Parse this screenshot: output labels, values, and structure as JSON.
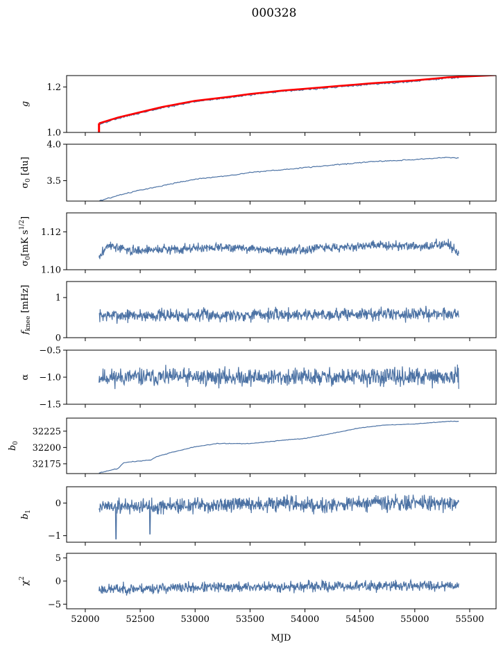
{
  "title": "000328",
  "xlabel": "MJD",
  "x_ticks": [
    52000,
    52500,
    53000,
    53500,
    54000,
    54500,
    55000,
    55500
  ],
  "colors": {
    "series": "#4c72a4",
    "model": "#ff0000"
  },
  "chart_data": {
    "type": "line",
    "shared_x": {
      "label": "MJD",
      "xlim": [
        51830,
        55740
      ],
      "data_range": [
        52125,
        55400
      ]
    },
    "panels": [
      {
        "id": "g",
        "ylabel_parts": [
          "g",
          "",
          ""
        ],
        "ylim": [
          1.0,
          1.25
        ],
        "yticks": [
          1.0,
          1.2
        ],
        "ytick_labels": [
          "1.0",
          "1.2"
        ],
        "series": [
          {
            "kind": "trend",
            "points": [
              [
                52125,
                1.035
              ],
              [
                52300,
                1.062
              ],
              [
                52500,
                1.085
              ],
              [
                52700,
                1.108
              ],
              [
                53000,
                1.135
              ],
              [
                53300,
                1.152
              ],
              [
                53500,
                1.165
              ],
              [
                53800,
                1.18
              ],
              [
                54000,
                1.188
              ],
              [
                54300,
                1.2
              ],
              [
                54600,
                1.212
              ],
              [
                55000,
                1.225
              ],
              [
                55300,
                1.238
              ],
              [
                55400,
                1.242
              ]
            ],
            "noise": 0.002
          },
          {
            "kind": "model",
            "points": [
              [
                52125,
                1.04
              ],
              [
                52300,
                1.066
              ],
              [
                52500,
                1.089
              ],
              [
                52700,
                1.112
              ],
              [
                53000,
                1.139
              ],
              [
                53300,
                1.156
              ],
              [
                53500,
                1.169
              ],
              [
                53800,
                1.184
              ],
              [
                54000,
                1.192
              ],
              [
                54300,
                1.204
              ],
              [
                54600,
                1.216
              ],
              [
                55000,
                1.229
              ],
              [
                55300,
                1.242
              ],
              [
                55740,
                1.252
              ]
            ],
            "drop_to": 1.0
          }
        ]
      },
      {
        "id": "sigma0_du",
        "ylabel_parts": [
          "σ",
          "0",
          " [du]"
        ],
        "ylim": [
          3.22,
          4.0
        ],
        "yticks": [
          3.5,
          4.0
        ],
        "ytick_labels": [
          "3.5",
          "4.0"
        ],
        "series": [
          {
            "kind": "trend",
            "points": [
              [
                52125,
                3.22
              ],
              [
                52300,
                3.3
              ],
              [
                52500,
                3.37
              ],
              [
                52700,
                3.43
              ],
              [
                53000,
                3.52
              ],
              [
                53300,
                3.57
              ],
              [
                53500,
                3.61
              ],
              [
                53800,
                3.65
              ],
              [
                54000,
                3.68
              ],
              [
                54300,
                3.72
              ],
              [
                54600,
                3.76
              ],
              [
                55000,
                3.79
              ],
              [
                55300,
                3.82
              ],
              [
                55400,
                3.81
              ]
            ],
            "noise": 0.004
          }
        ]
      },
      {
        "id": "sigma0_mK",
        "ylabel_parts": [
          "σ",
          "0",
          "[mK s^1/2]"
        ],
        "ylim": [
          1.1,
          1.13
        ],
        "yticks": [
          1.1,
          1.12
        ],
        "ytick_labels": [
          "1.10",
          "1.12"
        ],
        "series": [
          {
            "kind": "noise",
            "points": [
              [
                52125,
                1.106
              ],
              [
                52200,
                1.113
              ],
              [
                52400,
                1.11
              ],
              [
                52800,
                1.111
              ],
              [
                53300,
                1.112
              ],
              [
                53800,
                1.11
              ],
              [
                54300,
                1.112
              ],
              [
                54800,
                1.113
              ],
              [
                55100,
                1.112
              ],
              [
                55300,
                1.114
              ],
              [
                55400,
                1.108
              ]
            ],
            "noise": 0.0015,
            "seed": 3
          }
        ]
      },
      {
        "id": "fknee",
        "ylabel_parts": [
          "f",
          "knee",
          " [mHz]"
        ],
        "ylim": [
          0,
          1.4
        ],
        "yticks": [
          0,
          1
        ],
        "ytick_labels": [
          "0",
          "1"
        ],
        "series": [
          {
            "kind": "noise",
            "points": [
              [
                52125,
                0.55
              ],
              [
                55400,
                0.6
              ]
            ],
            "noise": 0.1,
            "seed": 7
          }
        ]
      },
      {
        "id": "alpha",
        "ylabel_parts": [
          "α",
          "",
          ""
        ],
        "ylim": [
          -1.5,
          -0.5
        ],
        "yticks": [
          -1.5,
          -1.0,
          -0.5
        ],
        "ytick_labels": [
          "−1.5",
          "−1.0",
          "−0.5"
        ],
        "series": [
          {
            "kind": "noise",
            "points": [
              [
                52125,
                -1.0
              ],
              [
                55400,
                -1.0
              ]
            ],
            "noise": 0.1,
            "seed": 11
          }
        ]
      },
      {
        "id": "b0",
        "ylabel_parts": [
          "b",
          "0",
          ""
        ],
        "ylim": [
          32160,
          32245
        ],
        "yticks": [
          32175,
          32200,
          32225
        ],
        "ytick_labels": [
          "32175",
          "32200",
          "32225"
        ],
        "series": [
          {
            "kind": "trend",
            "points": [
              [
                52125,
                32161
              ],
              [
                52300,
                32168
              ],
              [
                52350,
                32177
              ],
              [
                52600,
                32181
              ],
              [
                52650,
                32186
              ],
              [
                52800,
                32193
              ],
              [
                53000,
                32201
              ],
              [
                53200,
                32206
              ],
              [
                53500,
                32206
              ],
              [
                53800,
                32211
              ],
              [
                54000,
                32214
              ],
              [
                54200,
                32220
              ],
              [
                54500,
                32230
              ],
              [
                54700,
                32234
              ],
              [
                55000,
                32236
              ],
              [
                55300,
                32240
              ],
              [
                55400,
                32240
              ]
            ],
            "noise": 0.3
          }
        ]
      },
      {
        "id": "b1",
        "ylabel_parts": [
          "b",
          "1",
          ""
        ],
        "ylim": [
          -1.2,
          0.5
        ],
        "yticks": [
          -1,
          0
        ],
        "ytick_labels": [
          "−1",
          "0"
        ],
        "series": [
          {
            "kind": "noise",
            "points": [
              [
                52125,
                -0.1
              ],
              [
                55400,
                0.0
              ]
            ],
            "noise": 0.15,
            "seed": 19,
            "spikes": [
              [
                52280,
                -1.1
              ],
              [
                52590,
                -0.95
              ]
            ]
          }
        ]
      },
      {
        "id": "chi2",
        "ylabel_parts": [
          "χ",
          "",
          "^2"
        ],
        "ylim": [
          -6,
          6
        ],
        "yticks": [
          -5,
          0,
          5
        ],
        "ytick_labels": [
          "−5",
          "0",
          "5"
        ],
        "series": [
          {
            "kind": "noise",
            "points": [
              [
                52125,
                -1.8
              ],
              [
                53000,
                -1.4
              ],
              [
                54000,
                -1.2
              ],
              [
                55400,
                -0.9
              ]
            ],
            "noise": 0.7,
            "seed": 23
          }
        ]
      }
    ]
  }
}
